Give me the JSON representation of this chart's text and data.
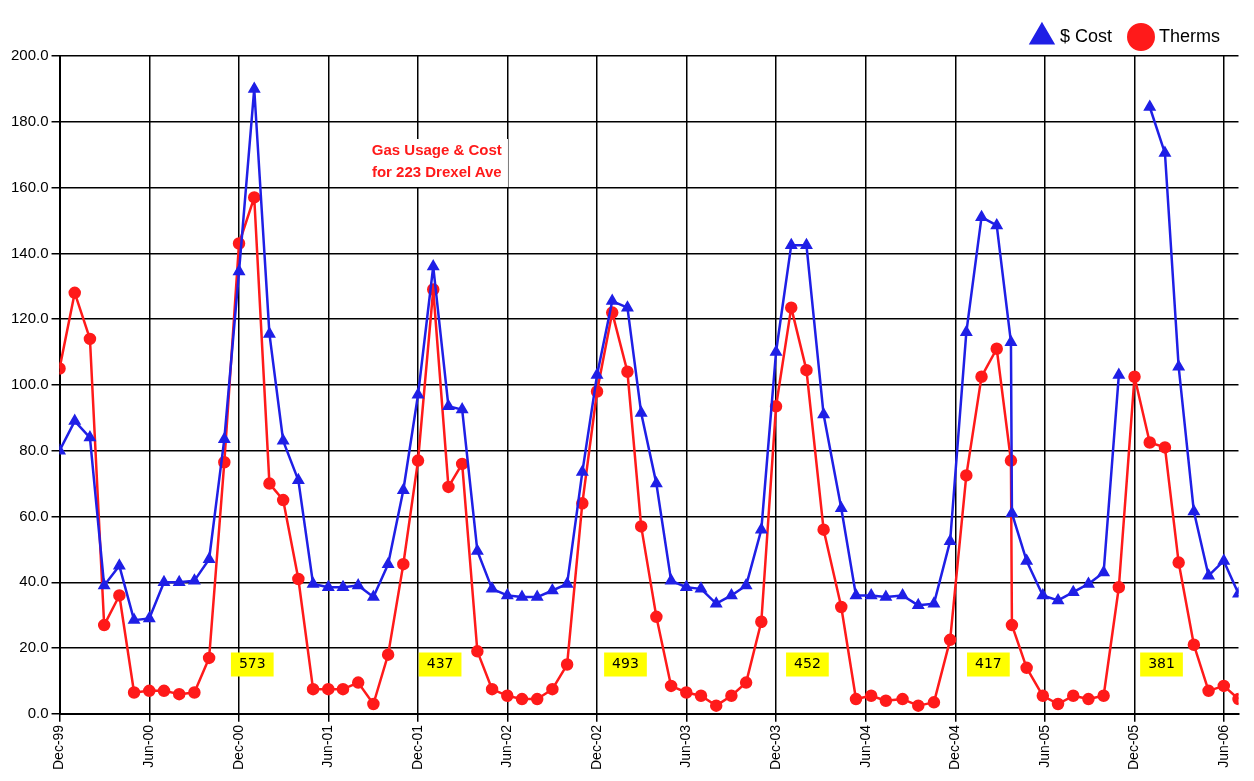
{
  "chart_data": {
    "type": "line",
    "title": "Gas Usage & Cost",
    "subtitle": "for 223 Drexel Ave",
    "x": [
      "1999-12-01",
      "2000-01-01",
      "2000-02-01",
      "2000-03-01",
      "2000-04-01",
      "2000-05-01",
      "2000-06-01",
      "2000-07-01",
      "2000-08-01",
      "2000-09-01",
      "2000-10-01",
      "2000-11-01",
      "2000-12-01",
      "2001-01-01",
      "2001-02-01",
      "2001-03-01",
      "2001-04-01",
      "2001-05-01",
      "2001-06-01",
      "2001-07-01",
      "2001-08-01",
      "2001-09-01",
      "2001-10-01",
      "2001-11-01",
      "2001-12-01",
      "2002-01-01",
      "2002-02-01",
      "2002-03-01",
      "2002-04-01",
      "2002-05-01",
      "2002-06-01",
      "2002-07-01",
      "2002-08-01",
      "2002-09-01",
      "2002-10-01",
      "2002-11-01",
      "2002-12-01",
      "2003-01-01",
      "2003-02-01",
      "2003-03-01",
      "2003-04-01",
      "2003-05-01",
      "2003-06-01",
      "2003-07-01",
      "2003-08-01",
      "2003-09-01",
      "2003-10-01",
      "2003-11-01",
      "2003-12-01",
      "2004-01-01",
      "2004-02-01",
      "2004-03-07",
      "2004-04-12",
      "2004-05-12",
      "2004-06-12",
      "2004-07-12",
      "2004-08-15",
      "2004-09-16",
      "2004-10-18",
      "2004-11-20",
      "2004-12-23",
      "2005-01-23",
      "2005-02-23",
      "2005-03-24",
      "2005-03-26",
      "2005-04-25",
      "2005-05-28",
      "2005-06-28",
      "2005-07-29",
      "2005-08-29",
      "2005-09-29",
      "2005-10-30",
      "2005-12-01",
      "2006-01-01",
      "2006-02-01",
      "2006-03-01",
      "2006-04-01",
      "2006-05-01",
      "2006-06-01",
      "2006-07-01"
    ],
    "series": [
      {
        "name": "$ Cost",
        "color": "#1f1fe6",
        "marker": "triangle",
        "values": [
          80,
          89,
          84,
          39,
          45,
          28.5,
          29,
          40,
          40,
          40.5,
          47,
          83.5,
          134.5,
          190,
          115.5,
          83,
          71,
          39.5,
          38.5,
          38.5,
          39,
          35.5,
          45.5,
          68,
          97,
          136,
          93.5,
          92.5,
          49.5,
          38,
          36,
          35.5,
          35.5,
          37.5,
          39.5,
          73.5,
          103,
          125.5,
          123.5,
          91.5,
          70,
          40.5,
          38.5,
          38,
          33.5,
          36,
          39,
          56,
          110,
          142.5,
          142.5,
          91,
          62.5,
          36,
          36,
          35.5,
          36,
          33,
          33.5,
          52.5,
          116,
          151,
          148.5,
          113,
          61,
          46.5,
          36,
          34.5,
          37,
          39.5,
          43,
          103,
          null,
          184.5,
          170.5,
          105.5,
          61.5,
          42,
          46.5,
          36.5
        ]
      },
      {
        "name": "Therms",
        "color": "#ff1a1a",
        "marker": "circle",
        "values": [
          105,
          128,
          114,
          27,
          36,
          6.5,
          7,
          7,
          6,
          6.5,
          17,
          76.5,
          143,
          157,
          70,
          65,
          41,
          7.5,
          7.5,
          7.5,
          9.5,
          3,
          18,
          45.5,
          77,
          129,
          69,
          76,
          19,
          7.5,
          5.5,
          4.5,
          4.5,
          7.5,
          15,
          64,
          98,
          122,
          104,
          57,
          29.5,
          8.5,
          6.5,
          5.5,
          2.5,
          5.5,
          9.5,
          28,
          93.5,
          123.5,
          104.5,
          56,
          32.5,
          4.5,
          5.5,
          4,
          4.5,
          2.5,
          3.5,
          22.5,
          72.5,
          102.5,
          111,
          77,
          27,
          14,
          5.5,
          3,
          5.5,
          4.5,
          5.5,
          38.5,
          102.5,
          82.5,
          81,
          46,
          21,
          7,
          8.5,
          4.5
        ]
      }
    ],
    "xlim": [
      "1999-12-01",
      "2006-07-01"
    ],
    "xticks": [
      {
        "value": "1999-12-01",
        "label": "Dec-99"
      },
      {
        "value": "2000-06-01",
        "label": "Jun-00"
      },
      {
        "value": "2000-12-01",
        "label": "Dec-00"
      },
      {
        "value": "2001-06-01",
        "label": "Jun-01"
      },
      {
        "value": "2001-12-01",
        "label": "Dec-01"
      },
      {
        "value": "2002-06-01",
        "label": "Jun-02"
      },
      {
        "value": "2002-12-01",
        "label": "Dec-02"
      },
      {
        "value": "2003-06-01",
        "label": "Jun-03"
      },
      {
        "value": "2003-12-01",
        "label": "Dec-03"
      },
      {
        "value": "2004-06-01",
        "label": "Jun-04"
      },
      {
        "value": "2004-12-01",
        "label": "Dec-04"
      },
      {
        "value": "2005-06-01",
        "label": "Jun-05"
      },
      {
        "value": "2005-12-01",
        "label": "Dec-05"
      },
      {
        "value": "2006-06-01",
        "label": "Jun-06"
      }
    ],
    "ylim": [
      0,
      200
    ],
    "yticks": [
      {
        "value": 0,
        "label": "0.0"
      },
      {
        "value": 20,
        "label": "20.0"
      },
      {
        "value": 40,
        "label": "40.0"
      },
      {
        "value": 60,
        "label": "60.0"
      },
      {
        "value": 80,
        "label": "80.0"
      },
      {
        "value": 100,
        "label": "100.0"
      },
      {
        "value": 120,
        "label": "120.0"
      },
      {
        "value": 140,
        "label": "140.0"
      },
      {
        "value": 160,
        "label": "160.0"
      },
      {
        "value": 180,
        "label": "180.0"
      },
      {
        "value": 200,
        "label": "200.0"
      }
    ],
    "annotations": [
      {
        "text": "573",
        "x": "2000-12-28",
        "y": 15
      },
      {
        "text": "437",
        "x": "2002-01-15",
        "y": 15
      },
      {
        "text": "493",
        "x": "2003-01-28",
        "y": 15
      },
      {
        "text": "452",
        "x": "2004-02-03",
        "y": 15
      },
      {
        "text": "417",
        "x": "2005-02-06",
        "y": 15
      },
      {
        "text": "381",
        "x": "2006-01-25",
        "y": 15
      }
    ],
    "grid": true,
    "legend": "top right",
    "line_style": "solid"
  }
}
